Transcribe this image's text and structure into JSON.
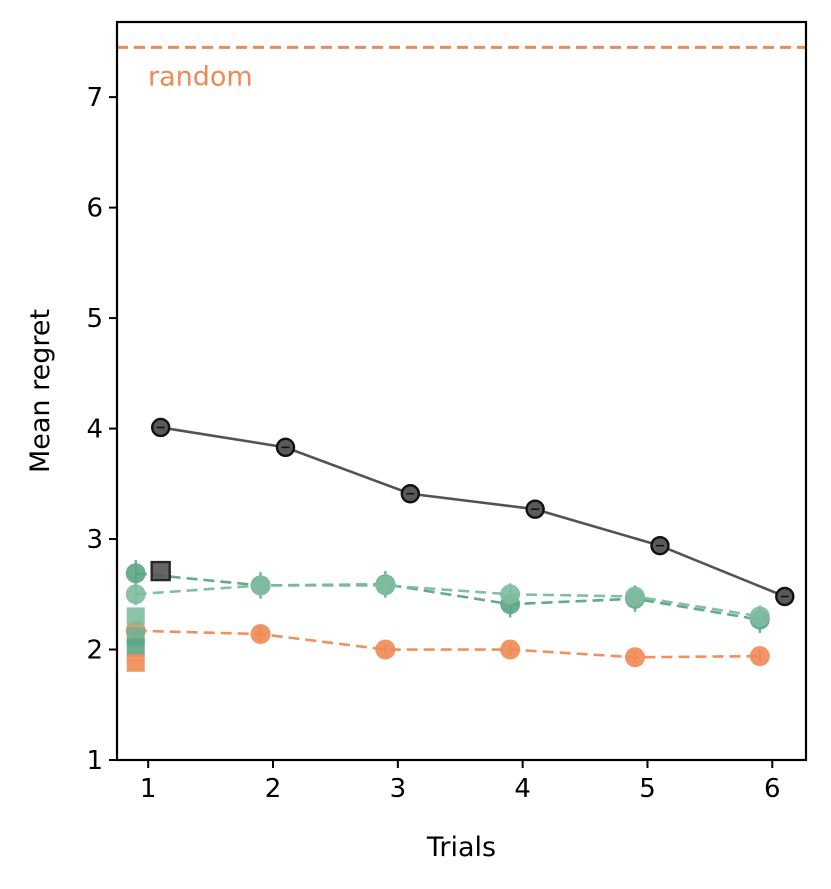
{
  "chart_data": {
    "type": "line",
    "xlabel": "Trials",
    "ylabel": "Mean regret",
    "xlim": [
      0.75,
      6.27
    ],
    "ylim": [
      1,
      7.68
    ],
    "xticks": [
      "1",
      "2",
      "3",
      "4",
      "5",
      "6"
    ],
    "yticks": [
      "1",
      "2",
      "3",
      "4",
      "5",
      "6",
      "7"
    ],
    "grid": false,
    "reference_line": {
      "label": "random",
      "y": 7.45,
      "color": "#ef8a55",
      "style": "dashed"
    },
    "series": [
      {
        "color": "#4a4a4a",
        "style": "solid",
        "marker": "circle-outlined",
        "x": [
          1.1,
          2.1,
          3.1,
          4.1,
          5.1,
          6.1
        ],
        "y": [
          4.01,
          3.83,
          3.41,
          3.27,
          2.94,
          2.48
        ],
        "err": [
          0.03,
          0.03,
          0.03,
          0.03,
          0.03,
          0.03
        ]
      },
      {
        "color": "#5aa686",
        "style": "dashed",
        "marker": "circle",
        "x": [
          0.9,
          1.9,
          2.9,
          3.9,
          4.9,
          5.9
        ],
        "y": [
          2.69,
          2.58,
          2.59,
          2.41,
          2.46,
          2.27
        ],
        "err": [
          0.12,
          0.12,
          0.12,
          0.12,
          0.12,
          0.12
        ]
      },
      {
        "color": "#7fbba0",
        "style": "dashed",
        "marker": "circle",
        "x": [
          0.9,
          1.9,
          2.9,
          3.9,
          4.9,
          5.9
        ],
        "y": [
          2.5,
          2.58,
          2.58,
          2.5,
          2.48,
          2.3
        ],
        "err": [
          0.1,
          0.1,
          0.1,
          0.1,
          0.1,
          0.1
        ]
      },
      {
        "color": "#ef8a55",
        "style": "dashed",
        "marker": "circle",
        "x": [
          0.9,
          1.9,
          2.9,
          3.9,
          4.9,
          5.9
        ],
        "y": [
          2.17,
          2.14,
          2.0,
          2.0,
          1.93,
          1.94
        ],
        "err": [
          0.07,
          0.07,
          0.05,
          0.05,
          0.05,
          0.05
        ]
      }
    ],
    "single_points": [
      {
        "color": "#555555",
        "marker": "square-outlined",
        "x": 1.1,
        "y": 2.71
      },
      {
        "color": "#7fbba0",
        "marker": "square",
        "x": 0.9,
        "y": 2.3
      },
      {
        "color": "#6cb394",
        "marker": "square",
        "x": 0.9,
        "y": 2.12
      },
      {
        "color": "#5aa686",
        "marker": "square",
        "x": 0.9,
        "y": 2.02
      },
      {
        "color": "#ef8a55",
        "marker": "square",
        "x": 0.9,
        "y": 1.88
      }
    ]
  }
}
